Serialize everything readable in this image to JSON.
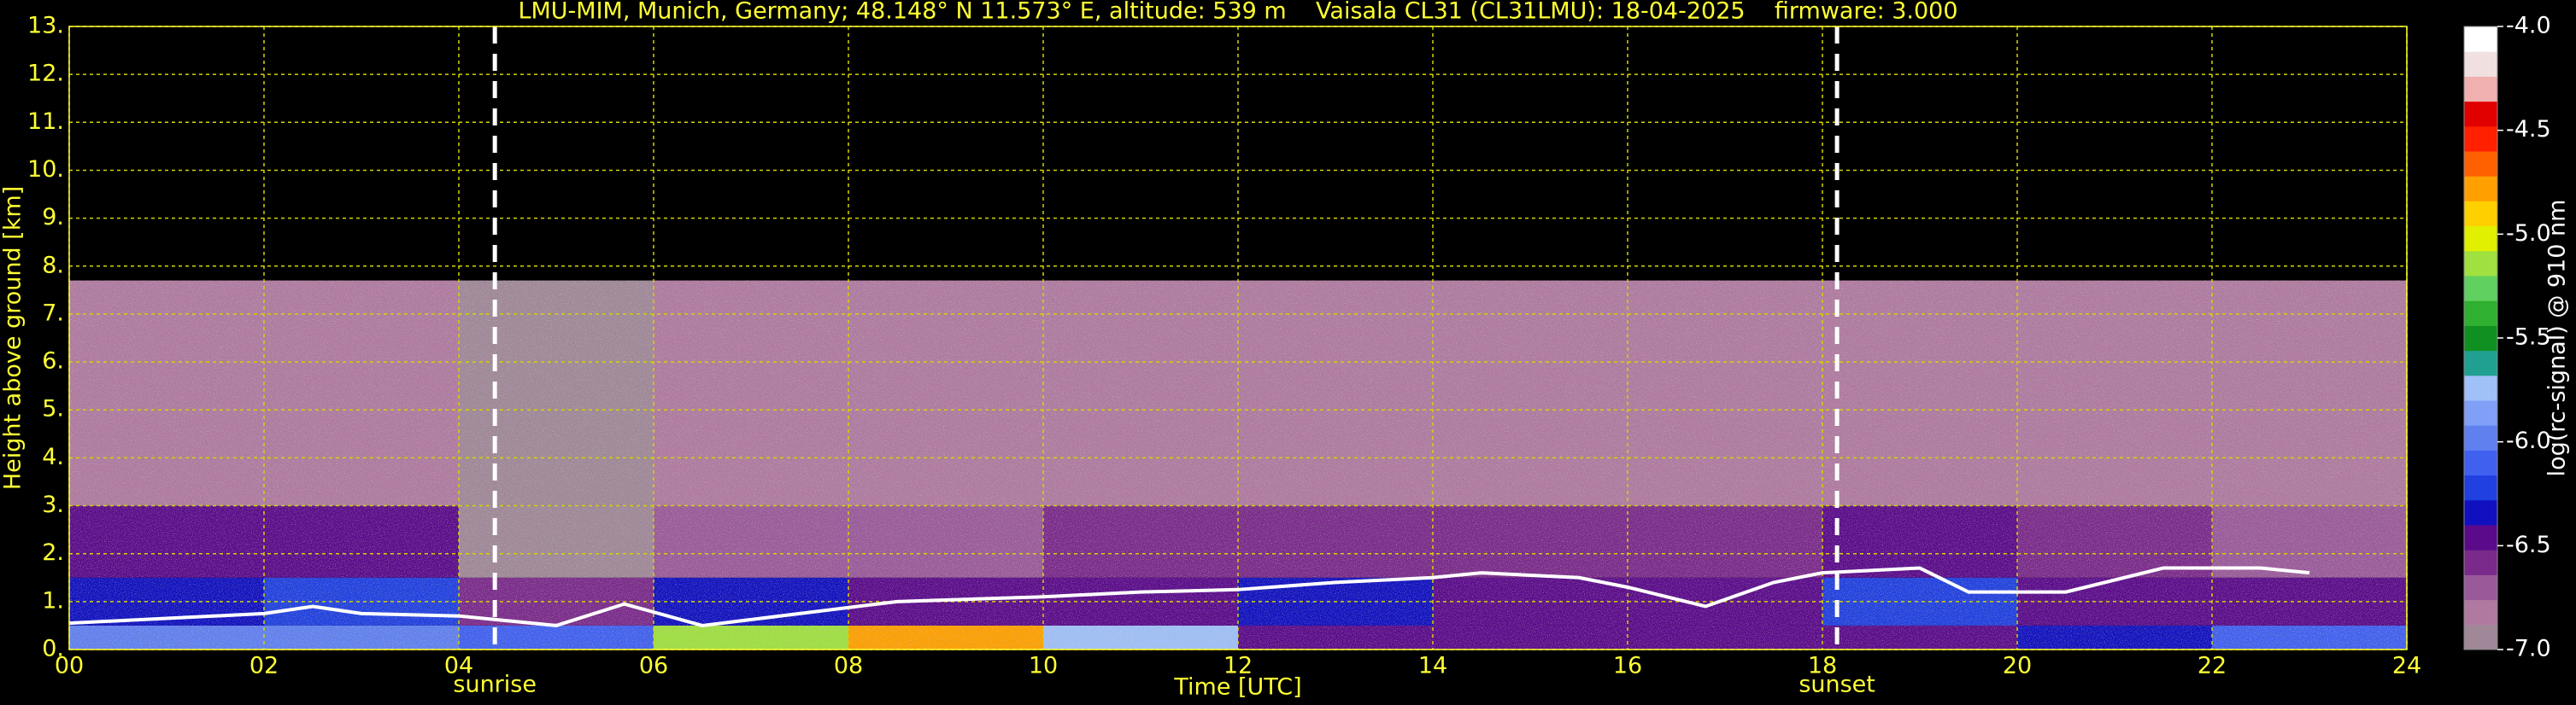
{
  "chart_data": {
    "type": "heatmap",
    "title": "LMU-MIM, Munich, Germany; 48.148° N 11.573° E, altitude: 539 m    Vaisala CL31 (CL31LMU): 18-04-2025    firmware: 3.000",
    "xlabel": "Time [UTC]",
    "ylabel": "Height above ground [km]",
    "xlim": [
      0,
      24
    ],
    "ylim": [
      0,
      13
    ],
    "xticks": [
      {
        "value": 0,
        "label": "00"
      },
      {
        "value": 2,
        "label": "02"
      },
      {
        "value": 4,
        "label": "04"
      },
      {
        "value": 6,
        "label": "06"
      },
      {
        "value": 8,
        "label": "08"
      },
      10,
      12,
      14,
      16,
      18,
      20,
      22,
      24
    ],
    "yticks": [
      {
        "value": 0,
        "label": "0."
      },
      {
        "value": 1,
        "label": "1."
      },
      {
        "value": 2,
        "label": "2."
      },
      {
        "value": 3,
        "label": "3."
      },
      {
        "value": 4,
        "label": "4."
      },
      {
        "value": 5,
        "label": "5."
      },
      {
        "value": 6,
        "label": "6."
      },
      {
        "value": 7,
        "label": "7."
      },
      {
        "value": 8,
        "label": "8."
      },
      {
        "value": 9,
        "label": "9."
      },
      {
        "value": 10,
        "label": "10."
      },
      {
        "value": 11,
        "label": "11."
      },
      {
        "value": 12,
        "label": "12."
      },
      {
        "value": 13,
        "label": "13."
      }
    ],
    "grid": true,
    "grid_color": "#d4d400",
    "x_edges": [
      0,
      2,
      4,
      6,
      8,
      10,
      12,
      14,
      16,
      18,
      20,
      22,
      24
    ],
    "y_edges": [
      0,
      0.5,
      1.5,
      3,
      7.7
    ],
    "z": [
      [
        -6.0,
        -6.0,
        -6.1,
        -5.2,
        -4.8,
        -5.8,
        -6.4,
        -6.5,
        -6.5,
        -6.4,
        -6.3,
        -6.1
      ],
      [
        -6.3,
        -6.2,
        -6.6,
        -6.3,
        -6.4,
        -6.4,
        -6.3,
        -6.4,
        -6.5,
        -6.2,
        -6.4,
        -6.4
      ],
      [
        -6.5,
        -6.4,
        -6.9,
        -6.7,
        -6.7,
        -6.6,
        -6.6,
        -6.6,
        -6.6,
        -6.5,
        -6.6,
        -6.7
      ],
      [
        -6.8,
        -6.8,
        -6.9,
        -6.8,
        -6.8,
        -6.8,
        -6.8,
        -6.8,
        -6.8,
        -6.8,
        -6.8,
        -6.8
      ]
    ],
    "x": [
      0,
      1,
      2,
      2.5,
      3,
      4,
      5,
      5.7,
      6.5,
      7.5,
      8.5,
      10,
      11,
      12,
      13,
      14,
      14.5,
      15.5,
      16,
      16.8,
      17.5,
      18,
      19,
      19.5,
      20.5,
      21.5,
      22.5,
      23
    ],
    "values": [
      0.55,
      0.65,
      0.75,
      0.9,
      0.75,
      0.7,
      0.5,
      0.95,
      0.5,
      0.75,
      1.0,
      1.1,
      1.2,
      1.25,
      1.4,
      1.5,
      1.6,
      1.5,
      1.3,
      0.9,
      1.4,
      1.6,
      1.7,
      1.2,
      1.2,
      1.7,
      1.7,
      1.6
    ],
    "line_color": "#ffffff",
    "annotations": [
      {
        "text": "sunrise",
        "x": 4.37
      },
      {
        "text": "sunset",
        "x": 18.15
      }
    ],
    "colorbar": {
      "label": "log(rc-signal) @ 910 nm",
      "lim": [
        -7,
        -4
      ],
      "ticks": [
        {
          "value": -4,
          "label": "-4.0"
        },
        -4.5,
        {
          "value": -5,
          "label": "-5.0"
        },
        -5.5,
        {
          "value": -6,
          "label": "-6.0"
        },
        -6.5,
        {
          "value": -7,
          "label": "-7.0"
        }
      ],
      "colors": [
        "#a08898",
        "#b07aa0",
        "#9a5a9a",
        "#7a2a8a",
        "#5a0a8a",
        "#1010c0",
        "#2040e0",
        "#4060f0",
        "#6080f0",
        "#80a0f8",
        "#a0c0f8",
        "#20a090",
        "#109020",
        "#30b030",
        "#60d060",
        "#a0e040",
        "#e0f000",
        "#ffd000",
        "#ffa000",
        "#ff6000",
        "#ff2000",
        "#e00000",
        "#f0b0b0",
        "#f0e0e0",
        "#ffffff"
      ]
    }
  }
}
